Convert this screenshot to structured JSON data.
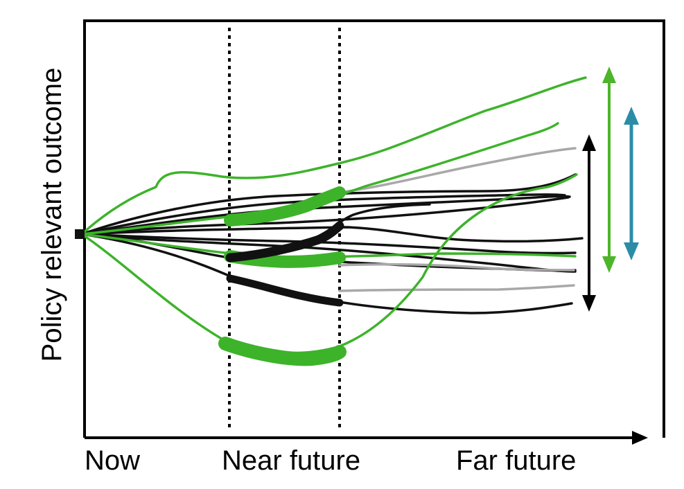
{
  "y_axis_label": "Policy relevant outcome",
  "x_axis_labels": {
    "now": "Now",
    "near_future": "Near future",
    "far_future": "Far future"
  },
  "colors": {
    "axes": "#000000",
    "green_trajectories": "#3db32a",
    "black_trajectories": "#111111",
    "grey_trajectories": "#a8a8a8",
    "green_range_arrow": "#4cb52a",
    "blue_range_arrow": "#2b8ca8",
    "black_range_arrow": "#000000"
  }
}
